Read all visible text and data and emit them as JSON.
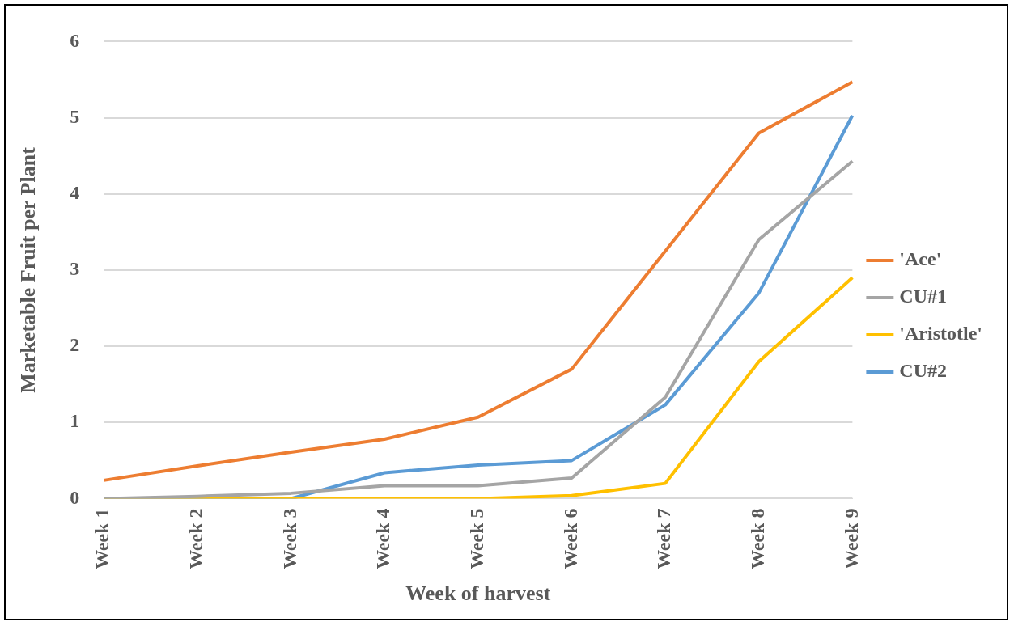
{
  "chart_data": {
    "type": "line",
    "xlabel": "Week of harvest",
    "ylabel": "Marketable Fruit per Plant",
    "categories": [
      "Week 1",
      "Week 2",
      "Week 3",
      "Week 4",
      "Week 5",
      "Week 6",
      "Week 7",
      "Week 8",
      "Week 9"
    ],
    "series": [
      {
        "name": "'Ace'",
        "color": "#ed7d31",
        "values": [
          0.24,
          0.43,
          0.61,
          0.78,
          1.07,
          1.7,
          3.25,
          4.8,
          5.47
        ]
      },
      {
        "name": "CU#1",
        "color": "#a5a5a5",
        "values": [
          0,
          0.03,
          0.07,
          0.17,
          0.17,
          0.27,
          1.33,
          3.4,
          4.43
        ]
      },
      {
        "name": "'Aristotle'",
        "color": "#ffc000",
        "values": [
          0,
          0,
          0,
          0,
          0,
          0.04,
          0.2,
          1.8,
          2.9
        ]
      },
      {
        "name": "CU#2",
        "color": "#5b9bd5",
        "values": [
          0,
          0,
          0,
          0.34,
          0.44,
          0.5,
          1.23,
          2.7,
          5.03
        ]
      }
    ],
    "ylim": [
      0,
      6
    ],
    "yticks": [
      0,
      1,
      2,
      3,
      4,
      5,
      6
    ],
    "grid": "y",
    "legend": "right",
    "marker": "none",
    "line_style": "solid"
  }
}
